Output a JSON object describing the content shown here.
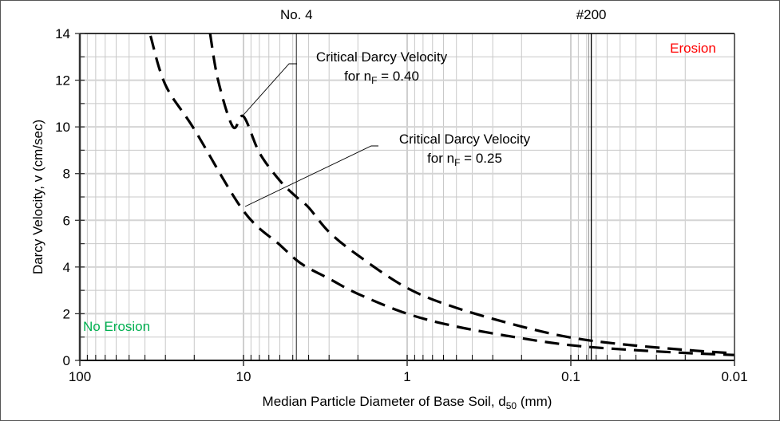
{
  "chart_data": {
    "type": "line",
    "title": "",
    "xlabel": "Median Particle Diameter of Base Soil, d50 (mm)",
    "xlabel_parts": {
      "main": "Median Particle Diameter of Base Soil, d",
      "sub": "50",
      "tail": " (mm)"
    },
    "ylabel": "Darcy Velocity, v (cm/sec)",
    "x_scale": "log",
    "x_reversed": true,
    "xlim": [
      100,
      0.01
    ],
    "ylim": [
      0,
      14
    ],
    "x_ticks": [
      100,
      10,
      1,
      0.1,
      0.01
    ],
    "x_tick_labels": [
      "100",
      "10",
      "1",
      "0.1",
      "0.01"
    ],
    "y_ticks": [
      0,
      2,
      4,
      6,
      8,
      10,
      12,
      14
    ],
    "y_tick_labels": [
      "0",
      "2",
      "4",
      "6",
      "8",
      "10",
      "12",
      "14"
    ],
    "y_minor_step": 1,
    "grid": true,
    "legend": null,
    "series": [
      {
        "name": "Critical Darcy Velocity for nF = 0.40",
        "style": "dashed",
        "color": "#000000",
        "x": [
          16.0,
          14.3,
          11.6,
          10,
          8,
          6,
          4.75,
          4,
          3,
          2,
          1,
          0.5,
          0.2,
          0.1,
          0.05,
          0.02,
          0.01
        ],
        "y": [
          14.0,
          12.0,
          10.0,
          10.45,
          8.9,
          7.7,
          7.0,
          6.55,
          5.5,
          4.5,
          3.1,
          2.25,
          1.45,
          0.98,
          0.7,
          0.45,
          0.3
        ]
      },
      {
        "name": "Critical Darcy Velocity for nF = 0.25",
        "style": "dashed",
        "color": "#000000",
        "x": [
          37,
          30,
          20,
          10,
          6,
          4.75,
          4,
          3,
          2,
          1,
          0.5,
          0.2,
          0.1,
          0.05,
          0.02,
          0.01
        ],
        "y": [
          13.9,
          11.8,
          9.9,
          6.4,
          4.95,
          4.3,
          3.95,
          3.5,
          2.85,
          2.0,
          1.45,
          0.95,
          0.65,
          0.48,
          0.32,
          0.23
        ]
      }
    ],
    "reference_lines": [
      {
        "label": "No. 4",
        "x": 4.75,
        "color": "#555555"
      },
      {
        "label": "#200",
        "x": 0.075,
        "color": "#000000"
      }
    ],
    "annotations": [
      {
        "line1": "Critical Darcy Velocity",
        "line2_prefix": "for n",
        "line2_sub": "F",
        "line2_suffix": " = 0.40",
        "points_to": [
          10,
          10.4
        ]
      },
      {
        "line1": "Critical Darcy Velocity",
        "line2_prefix": "for n",
        "line2_sub": "F",
        "line2_suffix": " = 0.25",
        "points_to": [
          10,
          6.5
        ]
      }
    ],
    "regions": [
      {
        "label": "Erosion",
        "color": "#ff0000"
      },
      {
        "label": "No Erosion",
        "color": "#00b050"
      }
    ]
  }
}
